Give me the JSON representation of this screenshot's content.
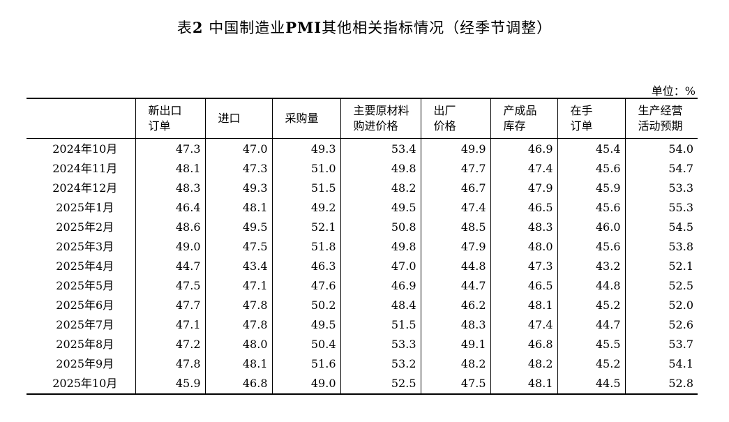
{
  "title": {
    "prefix": "表",
    "bold_num": "2",
    "mid": " 中国制造业",
    "bold_abbr": "PMI",
    "suffix": "其他相关指标情况（经季节调整）"
  },
  "unit_label": "单位：%",
  "columns": [
    {
      "line1": "新出口",
      "line2": "订单"
    },
    {
      "line1": "进口",
      "line2": ""
    },
    {
      "line1": "采购量",
      "line2": ""
    },
    {
      "line1": "主要原材料",
      "line2": "购进价格"
    },
    {
      "line1": "出厂",
      "line2": "价格"
    },
    {
      "line1": "产成品",
      "line2": "库存"
    },
    {
      "line1": "在手",
      "line2": "订单"
    },
    {
      "line1": "生产经营",
      "line2": "活动预期"
    }
  ],
  "rows": [
    {
      "month": "2024年10月",
      "values": [
        "47.3",
        "47.0",
        "49.3",
        "53.4",
        "49.9",
        "46.9",
        "45.4",
        "54.0"
      ]
    },
    {
      "month": "2024年11月",
      "values": [
        "48.1",
        "47.3",
        "51.0",
        "49.8",
        "47.7",
        "47.4",
        "45.6",
        "54.7"
      ]
    },
    {
      "month": "2024年12月",
      "values": [
        "48.3",
        "49.3",
        "51.5",
        "48.2",
        "46.7",
        "47.9",
        "45.9",
        "53.3"
      ]
    },
    {
      "month": "2025年1月",
      "values": [
        "46.4",
        "48.1",
        "49.2",
        "49.5",
        "47.4",
        "46.5",
        "45.6",
        "55.3"
      ]
    },
    {
      "month": "2025年2月",
      "values": [
        "48.6",
        "49.5",
        "52.1",
        "50.8",
        "48.5",
        "48.3",
        "46.0",
        "54.5"
      ]
    },
    {
      "month": "2025年3月",
      "values": [
        "49.0",
        "47.5",
        "51.8",
        "49.8",
        "47.9",
        "48.0",
        "45.6",
        "53.8"
      ]
    },
    {
      "month": "2025年4月",
      "values": [
        "44.7",
        "43.4",
        "46.3",
        "47.0",
        "44.8",
        "47.3",
        "43.2",
        "52.1"
      ]
    },
    {
      "month": "2025年5月",
      "values": [
        "47.5",
        "47.1",
        "47.6",
        "46.9",
        "44.7",
        "46.5",
        "44.8",
        "52.5"
      ]
    },
    {
      "month": "2025年6月",
      "values": [
        "47.7",
        "47.8",
        "50.2",
        "48.4",
        "46.2",
        "48.1",
        "45.2",
        "52.0"
      ]
    },
    {
      "month": "2025年7月",
      "values": [
        "47.1",
        "47.8",
        "49.5",
        "51.5",
        "48.3",
        "47.4",
        "44.7",
        "52.6"
      ]
    },
    {
      "month": "2025年8月",
      "values": [
        "47.2",
        "48.0",
        "50.4",
        "53.3",
        "49.1",
        "46.8",
        "45.5",
        "53.7"
      ]
    },
    {
      "month": "2025年9月",
      "values": [
        "47.8",
        "48.1",
        "51.6",
        "53.2",
        "48.2",
        "48.2",
        "45.2",
        "54.1"
      ]
    },
    {
      "month": "2025年10月",
      "values": [
        "45.9",
        "46.8",
        "49.0",
        "52.5",
        "47.5",
        "48.1",
        "44.5",
        "52.8"
      ]
    }
  ]
}
